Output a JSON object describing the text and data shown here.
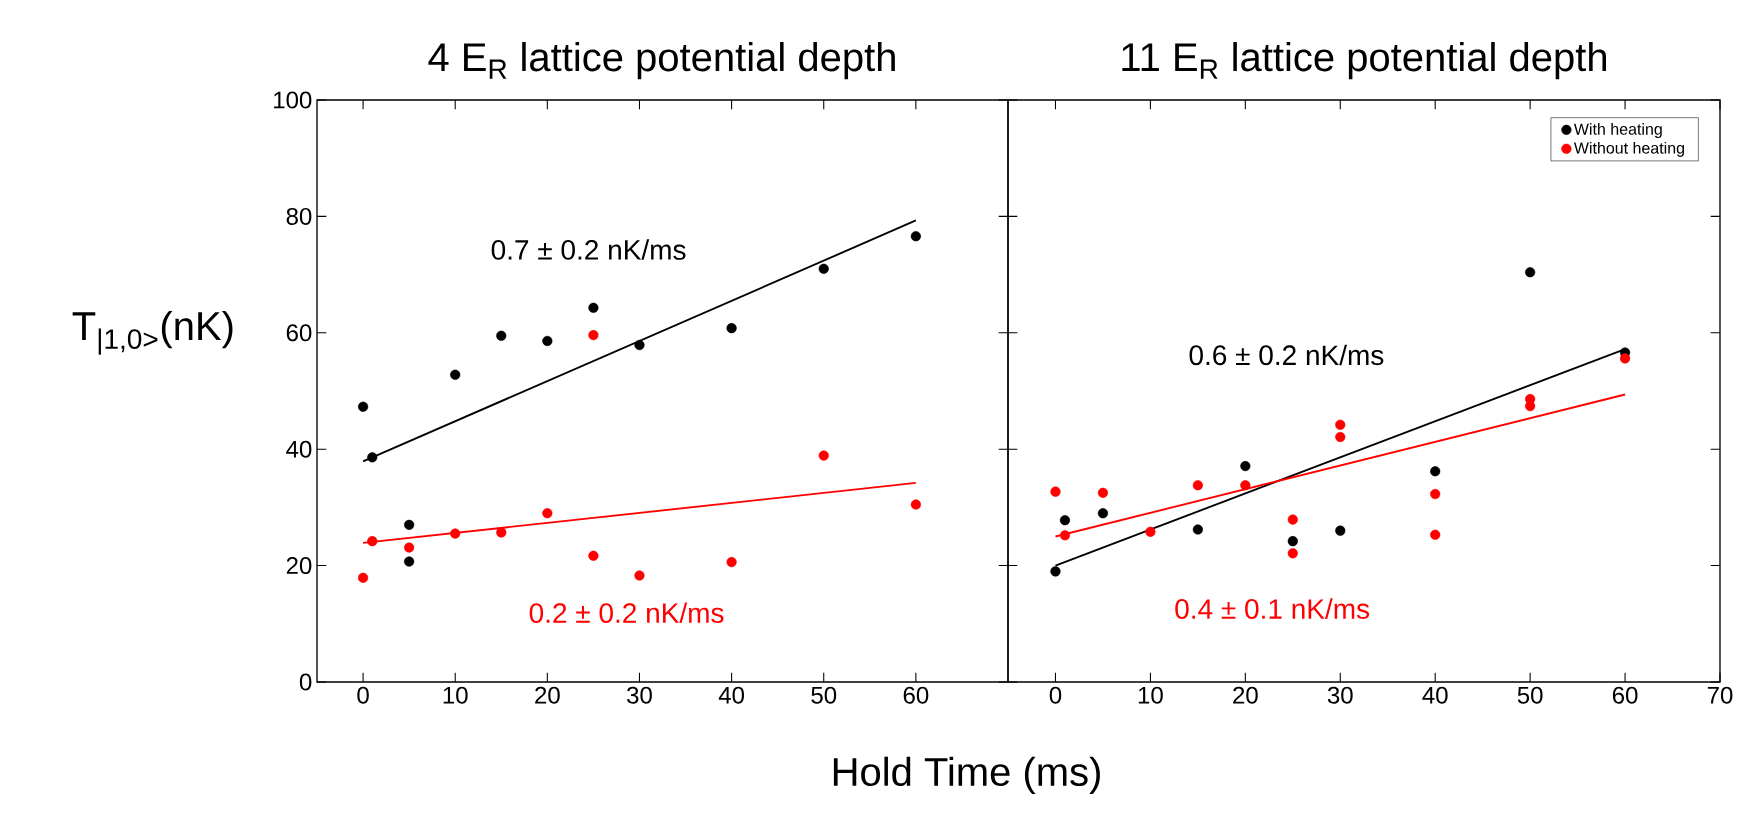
{
  "chart_data": [
    {
      "type": "scatter",
      "title": "4 E$_{R}$ lattice potential depth",
      "xlabel": "Hold Time (ms)",
      "ylabel": "T$_{|1,0>}$(nK)",
      "xlim": [
        -5,
        70
      ],
      "ylim": [
        0,
        100
      ],
      "xticks": [
        0,
        10,
        20,
        30,
        40,
        50,
        60
      ],
      "yticks": [
        0,
        20,
        40,
        60,
        80,
        100
      ],
      "series": [
        {
          "marker": "circle",
          "color": "#000000",
          "x": [
            0,
            1,
            5,
            5,
            10,
            15,
            20,
            25,
            30,
            40,
            50,
            60
          ],
          "values": [
            47.3,
            38.6,
            27.0,
            20.7,
            52.8,
            59.5,
            58.6,
            64.3,
            57.9,
            60.8,
            71.0,
            76.6
          ]
        },
        {
          "marker": "circle",
          "color": "#ff0000",
          "x": [
            0,
            1,
            5,
            10,
            15,
            20,
            25,
            25,
            30,
            40,
            50,
            60
          ],
          "values": [
            17.9,
            24.2,
            23.1,
            25.5,
            25.7,
            29.0,
            59.6,
            21.7,
            18.3,
            20.6,
            38.9,
            30.5
          ]
        },
        {
          "type": "line",
          "marker": "none",
          "color": "#000000",
          "x": [
            0,
            60
          ],
          "values": [
            37.9,
            79.3
          ]
        },
        {
          "type": "line",
          "marker": "none",
          "color": "#ff0000",
          "x": [
            0,
            60
          ],
          "values": [
            23.9,
            34.2
          ]
        }
      ],
      "annotations": [
        "0.7 ± 0.2 nK/ms",
        "0.2 ± 0.2 nK/ms"
      ]
    },
    {
      "type": "scatter",
      "title": "11 E$_{R}$ lattice potential depth",
      "xlim": [
        -5,
        70
      ],
      "ylim": [
        0,
        100
      ],
      "xticks": [
        0,
        10,
        20,
        30,
        40,
        50,
        60,
        70
      ],
      "yticks": [
        0,
        20,
        40,
        60,
        80,
        100
      ],
      "tick_labels": "x",
      "legend": "top right",
      "series": [
        {
          "name": "With heating",
          "marker": "circle",
          "color": "#000000",
          "x": [
            0,
            1,
            5,
            15,
            20,
            25,
            30,
            40,
            50,
            60
          ],
          "values": [
            19.0,
            27.8,
            29.0,
            26.2,
            37.1,
            24.2,
            26.0,
            36.2,
            70.4,
            56.6
          ]
        },
        {
          "name": "Without heating",
          "marker": "circle",
          "color": "#ff0000",
          "x": [
            0,
            1,
            5,
            10,
            15,
            20,
            25,
            25,
            30,
            30,
            40,
            40,
            50,
            50,
            60
          ],
          "values": [
            32.7,
            25.2,
            32.5,
            25.8,
            33.8,
            33.8,
            27.9,
            22.1,
            44.2,
            42.1,
            32.3,
            25.3,
            48.6,
            47.4,
            55.6
          ]
        },
        {
          "type": "line",
          "marker": "none",
          "color": "#000000",
          "x": [
            0,
            60
          ],
          "values": [
            20.0,
            57.2
          ]
        },
        {
          "type": "line",
          "marker": "none",
          "color": "#ff0000",
          "x": [
            0,
            60
          ],
          "values": [
            25.0,
            49.4
          ]
        }
      ],
      "annotations": [
        "0.6 ± 0.2 nK/ms",
        "0.4 ± 0.1 nK/ms"
      ]
    }
  ]
}
